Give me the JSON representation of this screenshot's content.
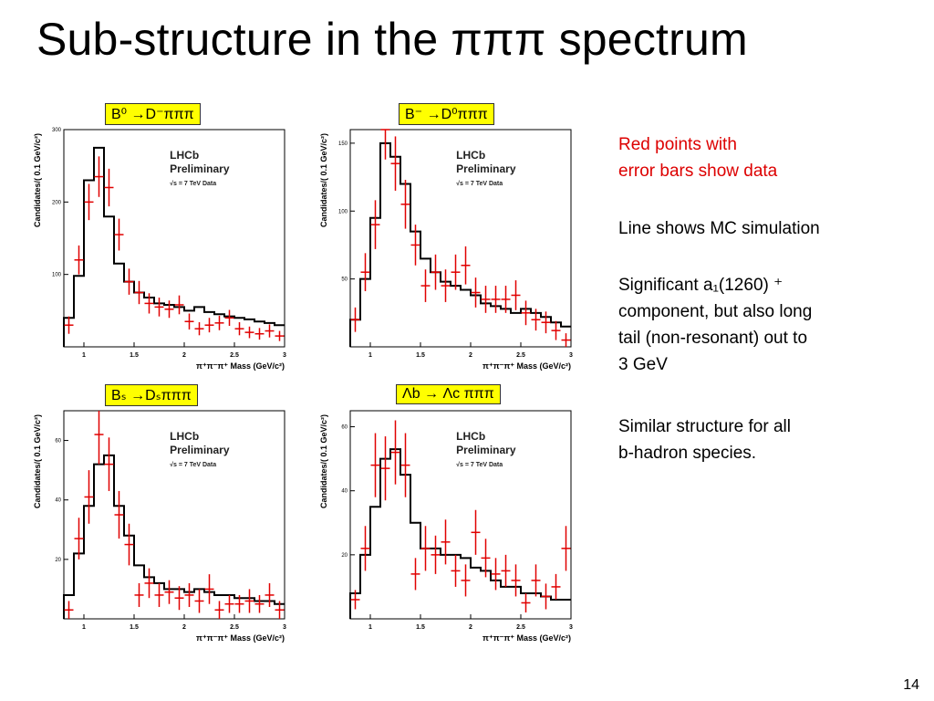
{
  "slide": {
    "title": "Sub-structure in the πππ spectrum",
    "page_number": "14"
  },
  "labels": [
    "B⁰ →D⁻πππ",
    "B⁻ →D⁰πππ",
    "Bₛ →Dₛπππ",
    "Λb → Λc πππ"
  ],
  "notes": {
    "red": [
      "Red points with",
      "error bars show data"
    ],
    "line": "Line shows MC simulation",
    "a1": [
      "Significant a₁(1260) ⁺",
      "component, but also long",
      "tail (non-resonant) out to",
      "3 GeV"
    ],
    "similar": [
      "Similar structure for all",
      "b-hadron species."
    ]
  },
  "colors": {
    "data": "#e00000",
    "mc": "#000000",
    "label_bg": "#ffff00",
    "note_red": "#dd0000"
  },
  "chart_data": [
    {
      "type": "line",
      "panel_label": "B⁰ →D⁻πππ",
      "ylabel": "Candidates/( 0.1 GeV/c²)",
      "xlabel": "π⁺π⁻π⁺ Mass (GeV/c²)",
      "annotation": [
        "LHCb",
        "Preliminary",
        "√s = 7 TeV Data"
      ],
      "xlim": [
        0.8,
        3.0
      ],
      "ylim": [
        0,
        300
      ],
      "xticks": [
        "1",
        "1.5",
        "2",
        "2.5",
        "3"
      ],
      "yticks": [
        "100",
        "200",
        "300"
      ],
      "ytick_values": [
        100,
        200,
        300
      ],
      "mc_edges": [
        0.8,
        0.9,
        1.0,
        1.1,
        1.2,
        1.3,
        1.4,
        1.5,
        1.6,
        1.7,
        1.8,
        1.9,
        2.0,
        2.1,
        2.2,
        2.3,
        2.4,
        2.5,
        2.6,
        2.7,
        2.8,
        2.9,
        3.0
      ],
      "mc_values": [
        40,
        98,
        230,
        275,
        180,
        115,
        90,
        75,
        68,
        60,
        58,
        55,
        50,
        55,
        48,
        45,
        42,
        40,
        38,
        35,
        33,
        30
      ],
      "data_x": [
        0.85,
        0.95,
        1.05,
        1.15,
        1.25,
        1.35,
        1.45,
        1.55,
        1.65,
        1.75,
        1.85,
        1.95,
        2.05,
        2.15,
        2.25,
        2.35,
        2.45,
        2.55,
        2.65,
        2.75,
        2.85,
        2.95
      ],
      "data_y": [
        30,
        120,
        200,
        235,
        220,
        155,
        90,
        75,
        60,
        55,
        52,
        58,
        35,
        25,
        30,
        33,
        40,
        25,
        20,
        18,
        22,
        15
      ],
      "data_err": [
        12,
        20,
        25,
        28,
        26,
        22,
        18,
        16,
        14,
        13,
        12,
        13,
        11,
        9,
        10,
        10,
        11,
        9,
        8,
        8,
        9,
        7
      ]
    },
    {
      "type": "line",
      "panel_label": "B⁻ →D⁰πππ",
      "ylabel": "Candidates/( 0.1 GeV/c²)",
      "xlabel": "π⁺π⁻π⁺ Mass (GeV/c²)",
      "annotation": [
        "LHCb",
        "Preliminary",
        "√s = 7 TeV Data"
      ],
      "xlim": [
        0.8,
        3.0
      ],
      "ylim": [
        0,
        160
      ],
      "xticks": [
        "1",
        "1.5",
        "2",
        "2.5",
        "3"
      ],
      "yticks": [
        "50",
        "100",
        "150"
      ],
      "ytick_values": [
        50,
        100,
        150
      ],
      "mc_edges": [
        0.8,
        0.9,
        1.0,
        1.1,
        1.2,
        1.3,
        1.4,
        1.5,
        1.6,
        1.7,
        1.8,
        1.9,
        2.0,
        2.1,
        2.2,
        2.3,
        2.4,
        2.5,
        2.6,
        2.7,
        2.8,
        2.9,
        3.0
      ],
      "mc_values": [
        20,
        50,
        95,
        150,
        140,
        120,
        85,
        65,
        55,
        48,
        45,
        42,
        38,
        32,
        30,
        28,
        25,
        28,
        25,
        22,
        18,
        15
      ],
      "data_x": [
        0.85,
        0.95,
        1.05,
        1.15,
        1.25,
        1.35,
        1.45,
        1.55,
        1.65,
        1.75,
        1.85,
        1.95,
        2.05,
        2.15,
        2.25,
        2.35,
        2.45,
        2.55,
        2.65,
        2.75,
        2.85,
        2.95
      ],
      "data_y": [
        20,
        55,
        90,
        160,
        135,
        105,
        75,
        45,
        55,
        45,
        55,
        60,
        40,
        35,
        35,
        35,
        38,
        25,
        20,
        18,
        12,
        5
      ],
      "data_err": [
        9,
        14,
        18,
        22,
        20,
        18,
        15,
        12,
        13,
        12,
        13,
        14,
        11,
        10,
        10,
        10,
        11,
        9,
        8,
        8,
        7,
        5
      ]
    },
    {
      "type": "line",
      "panel_label": "Bₛ →Dₛπππ",
      "ylabel": "Candidates/( 0.1 GeV/c²)",
      "xlabel": "π⁺π⁻π⁺ Mass (GeV/c²)",
      "annotation": [
        "LHCb",
        "Preliminary",
        "√s = 7 TeV Data"
      ],
      "xlim": [
        0.8,
        3.0
      ],
      "ylim": [
        0,
        70
      ],
      "xticks": [
        "1",
        "1.5",
        "2",
        "2.5",
        "3"
      ],
      "yticks": [
        "20",
        "40",
        "60"
      ],
      "ytick_values": [
        20,
        40,
        60
      ],
      "mc_edges": [
        0.8,
        0.9,
        1.0,
        1.1,
        1.2,
        1.3,
        1.4,
        1.5,
        1.6,
        1.7,
        1.8,
        1.9,
        2.0,
        2.1,
        2.2,
        2.3,
        2.4,
        2.5,
        2.6,
        2.7,
        2.8,
        2.9,
        3.0
      ],
      "mc_values": [
        8,
        22,
        38,
        52,
        55,
        38,
        28,
        18,
        14,
        12,
        10,
        10,
        9,
        10,
        9,
        8,
        8,
        7,
        7,
        6,
        6,
        5
      ],
      "data_x": [
        0.85,
        0.95,
        1.05,
        1.15,
        1.25,
        1.35,
        1.45,
        1.55,
        1.65,
        1.75,
        1.85,
        1.95,
        2.05,
        2.15,
        2.25,
        2.35,
        2.45,
        2.55,
        2.65,
        2.75,
        2.85,
        2.95
      ],
      "data_y": [
        3,
        27,
        41,
        62,
        52,
        35,
        25,
        8,
        12,
        8,
        9,
        7,
        8,
        6,
        10,
        3,
        5,
        5,
        6,
        5,
        8,
        3
      ],
      "data_err": [
        3,
        7,
        9,
        10,
        9,
        8,
        7,
        4,
        5,
        4,
        4,
        4,
        4,
        4,
        5,
        3,
        3,
        3,
        4,
        3,
        4,
        3
      ]
    },
    {
      "type": "line",
      "panel_label": "Λb → Λc πππ",
      "ylabel": "Candidates/( 0.1 GeV/c²)",
      "xlabel": "π⁺π⁻π⁺ Mass (GeV/c²)",
      "annotation": [
        "LHCb",
        "Preliminary",
        "√s = 7 TeV Data"
      ],
      "xlim": [
        0.8,
        3.0
      ],
      "ylim": [
        0,
        65
      ],
      "xticks": [
        "1",
        "1.5",
        "2",
        "2.5",
        "3"
      ],
      "yticks": [
        "20",
        "40",
        "60"
      ],
      "ytick_values": [
        20,
        40,
        60
      ],
      "mc_edges": [
        0.8,
        0.9,
        1.0,
        1.1,
        1.2,
        1.3,
        1.4,
        1.5,
        1.6,
        1.7,
        1.8,
        1.9,
        2.0,
        2.1,
        2.2,
        2.3,
        2.4,
        2.5,
        2.6,
        2.7,
        2.8,
        2.9,
        3.0
      ],
      "mc_values": [
        8,
        20,
        35,
        50,
        53,
        45,
        30,
        22,
        22,
        20,
        20,
        19,
        16,
        15,
        12,
        10,
        10,
        8,
        8,
        7,
        6,
        6
      ],
      "data_x": [
        0.85,
        0.95,
        1.05,
        1.15,
        1.25,
        1.35,
        1.45,
        1.55,
        1.65,
        1.75,
        1.85,
        1.95,
        2.05,
        2.15,
        2.25,
        2.35,
        2.45,
        2.55,
        2.65,
        2.75,
        2.85,
        2.95
      ],
      "data_y": [
        6,
        22,
        48,
        47,
        52,
        48,
        14,
        22,
        20,
        24,
        15,
        12,
        27,
        19,
        14,
        15,
        12,
        5,
        12,
        7,
        10,
        22
      ],
      "data_err": [
        3,
        7,
        10,
        10,
        10,
        10,
        5,
        7,
        6,
        7,
        5,
        5,
        7,
        6,
        5,
        5,
        5,
        3,
        5,
        4,
        4,
        7
      ]
    }
  ]
}
